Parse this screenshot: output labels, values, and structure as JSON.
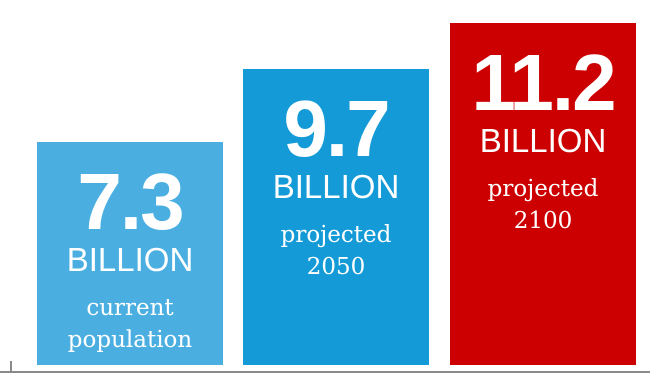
{
  "chart_data": {
    "type": "bar",
    "categories": [
      "current population",
      "projected 2050",
      "projected 2100"
    ],
    "values": [
      7.3,
      9.7,
      11.2
    ],
    "value_labels": [
      "7.3",
      "9.7",
      "11.2"
    ],
    "unit_label": "BILLION",
    "ylim": [
      0,
      11.8
    ],
    "description_lines": [
      [
        "current",
        "population"
      ],
      [
        "projected",
        "2050"
      ],
      [
        "projected",
        "2100"
      ]
    ],
    "colors": [
      "#4aafe0",
      "#149ad6",
      "#cc0000"
    ],
    "grid": false,
    "legend": "none"
  }
}
